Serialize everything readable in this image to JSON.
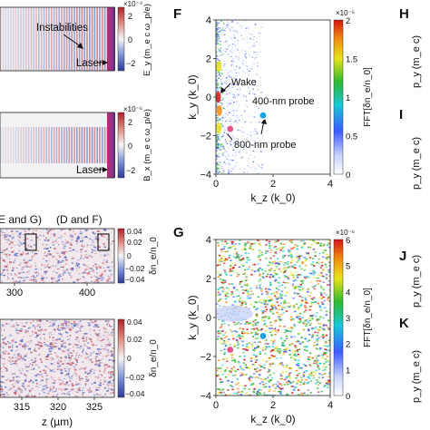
{
  "panels": {
    "left_top": {
      "annotations": {
        "instabilities": "Instabilities",
        "laser": "Laser"
      },
      "colorbar": {
        "label": "E_y (m_e c ω_p/e)",
        "multiplier": "×10⁻⁴",
        "ticks": [
          "2",
          "0",
          "−2"
        ]
      }
    },
    "left_mid": {
      "annotations": {
        "laser": "Laser"
      },
      "colorbar": {
        "label": "B_x (m_e c ω_p/e)",
        "multiplier": "×10⁻⁵",
        "ticks": [
          "2",
          "0",
          "−2"
        ]
      }
    },
    "left_3": {
      "annotations": {
        "box1": "E and G)",
        "box2": "(D and F)"
      },
      "colorbar": {
        "label": "δn_e/n_0",
        "ticks": [
          "0.04",
          "0.02",
          "0",
          "−0.02",
          "−0.04"
        ]
      },
      "x_ticks": [
        "300",
        "400"
      ]
    },
    "left_4": {
      "colorbar": {
        "label": "δn_e/n_0",
        "ticks": [
          "0.04",
          "0.02",
          "0",
          "−0.02",
          "−0.04"
        ]
      },
      "x_ticks": [
        "315",
        "320",
        "325"
      ],
      "xlabel": "z (µm)"
    },
    "F": {
      "letter": "F",
      "annotations": {
        "wake": "Wake",
        "probe400": "400-nm probe",
        "probe800": "800-nm probe"
      },
      "colorbar": {
        "label": "FFT[δn_e/n_0]",
        "multiplier": "×10⁻⁵",
        "ticks": [
          "2",
          "1.5",
          "1",
          "0.5",
          "0"
        ]
      }
    },
    "G": {
      "letter": "G",
      "colorbar": {
        "label": "FFT[δn_e/n_0]",
        "multiplier": "×10⁻⁶",
        "ticks": [
          "6",
          "5",
          "4",
          "3",
          "2",
          "1",
          "0"
        ]
      }
    },
    "right": {
      "letters": [
        "H",
        "I",
        "J",
        "K"
      ],
      "ylabel": "p_y (m_e c)"
    }
  },
  "chart_data": [
    {
      "type": "heatmap",
      "title": "F",
      "xlabel": "k_z (k_0)",
      "ylabel": "k_y (k_0)",
      "xlim": [
        0,
        4
      ],
      "ylim": [
        -4,
        4
      ],
      "x_ticks": [
        "0",
        "2",
        "4"
      ],
      "y_ticks": [
        "4",
        "2",
        "0",
        "−2",
        "−4"
      ],
      "colorbar_range": [
        0,
        2e-05
      ],
      "markers": [
        {
          "name": "400-nm probe",
          "kz": 1.65,
          "ky": -0.95,
          "color": "#1aa3e8"
        },
        {
          "name": "800-nm probe",
          "kz": 0.5,
          "ky": -1.65,
          "color": "#e8508c"
        }
      ]
    },
    {
      "type": "heatmap",
      "title": "G",
      "xlabel": "k_z (k_0)",
      "ylabel": "k_y (k_0)",
      "xlim": [
        0,
        4
      ],
      "ylim": [
        -4,
        4
      ],
      "x_ticks": [
        "0",
        "2",
        "4"
      ],
      "y_ticks": [
        "4",
        "2",
        "0",
        "−2",
        "−4"
      ],
      "colorbar_range": [
        0,
        6e-06
      ],
      "markers": [
        {
          "kz": 1.65,
          "ky": -0.95,
          "color": "#1aa3e8"
        },
        {
          "kz": 0.5,
          "ky": -1.65,
          "color": "#e8508c"
        }
      ]
    }
  ]
}
